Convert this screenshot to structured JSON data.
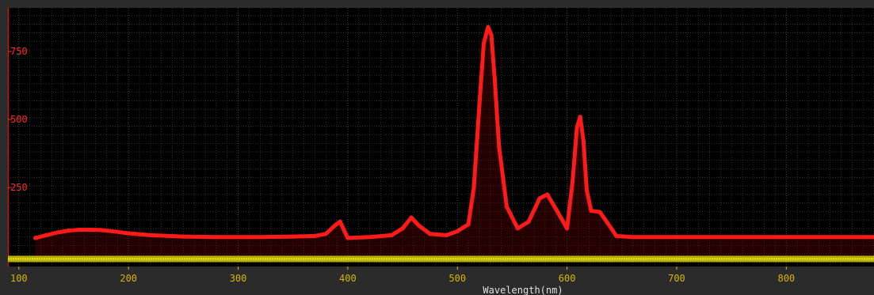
{
  "chart_data": {
    "type": "line",
    "xlabel": "Wavelength(nm)",
    "ylabel": "",
    "title": "",
    "xlim": [
      90,
      880
    ],
    "ylim": [
      -40,
      910
    ],
    "x_ticks": [
      100,
      200,
      300,
      400,
      500,
      600,
      700,
      800
    ],
    "y_ticks": [
      250,
      500,
      750
    ],
    "grid": true,
    "colors": {
      "background": "#000000",
      "frame": "#2b2b2b",
      "grid": "#4a4a4a",
      "series": "#ff1a1a",
      "baseline": "#e8e800",
      "x_tick_text": "#d8b400",
      "y_tick_text": "#ff2b2b"
    },
    "series": [
      {
        "color": "#ff1a1a",
        "x": [
          115,
          125,
          135,
          145,
          155,
          165,
          175,
          185,
          200,
          220,
          250,
          280,
          320,
          350,
          370,
          380,
          388,
          393,
          397,
          400,
          420,
          440,
          450,
          458,
          465,
          475,
          490,
          500,
          510,
          515,
          520,
          524,
          528,
          531,
          534,
          538,
          545,
          555,
          565,
          575,
          582,
          590,
          600,
          605,
          609,
          612,
          615,
          618,
          622,
          630,
          637,
          645,
          660,
          700,
          750,
          800,
          880
        ],
        "y": [
          65,
          75,
          85,
          92,
          95,
          95,
          94,
          90,
          82,
          75,
          70,
          68,
          68,
          70,
          72,
          80,
          110,
          125,
          90,
          65,
          68,
          75,
          100,
          140,
          110,
          80,
          75,
          90,
          115,
          250,
          550,
          780,
          840,
          810,
          650,
          400,
          180,
          100,
          125,
          210,
          225,
          170,
          100,
          270,
          470,
          510,
          420,
          240,
          165,
          160,
          120,
          72,
          68,
          68,
          68,
          68,
          68
        ]
      }
    ]
  }
}
